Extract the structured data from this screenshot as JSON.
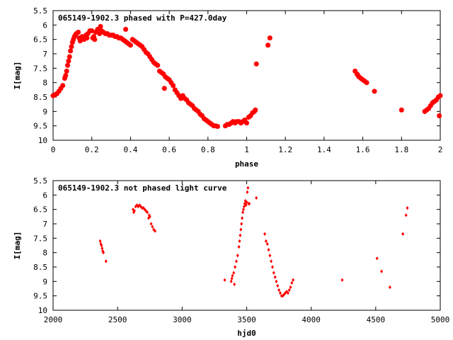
{
  "chart_data": [
    {
      "type": "scatter",
      "title": "065149-1902.3 phased with P=427.0day",
      "xlabel": "phase",
      "ylabel": "I[mag]",
      "xlim": [
        0,
        2
      ],
      "ylim": [
        10,
        5.5
      ],
      "y_inverted": true,
      "grid": false,
      "xticks": [
        "0",
        "0.2",
        "0.4",
        "0.6",
        "0.8",
        "1",
        "1.2",
        "1.4",
        "1.6",
        "1.8",
        "2"
      ],
      "yticks": [
        "5.5",
        "6",
        "6.5",
        "7",
        "7.5",
        "8",
        "8.5",
        "9",
        "9.5",
        "10"
      ],
      "marker_color": "#ff0000",
      "points": [
        [
          0.0,
          8.45
        ],
        [
          0.01,
          8.42
        ],
        [
          0.02,
          8.38
        ],
        [
          0.03,
          8.3
        ],
        [
          0.04,
          8.2
        ],
        [
          0.05,
          8.1
        ],
        [
          0.06,
          7.85
        ],
        [
          0.065,
          7.75
        ],
        [
          0.07,
          7.6
        ],
        [
          0.075,
          7.4
        ],
        [
          0.08,
          7.25
        ],
        [
          0.085,
          7.1
        ],
        [
          0.09,
          6.9
        ],
        [
          0.095,
          6.75
        ],
        [
          0.1,
          6.6
        ],
        [
          0.105,
          6.5
        ],
        [
          0.11,
          6.4
        ],
        [
          0.115,
          6.35
        ],
        [
          0.12,
          6.3
        ],
        [
          0.13,
          6.25
        ],
        [
          0.135,
          6.45
        ],
        [
          0.14,
          6.55
        ],
        [
          0.15,
          6.4
        ],
        [
          0.16,
          6.5
        ],
        [
          0.17,
          6.35
        ],
        [
          0.175,
          6.45
        ],
        [
          0.18,
          6.3
        ],
        [
          0.19,
          6.2
        ],
        [
          0.2,
          6.2
        ],
        [
          0.205,
          6.45
        ],
        [
          0.21,
          6.4
        ],
        [
          0.215,
          6.5
        ],
        [
          0.22,
          6.25
        ],
        [
          0.23,
          6.15
        ],
        [
          0.24,
          6.3
        ],
        [
          0.245,
          6.05
        ],
        [
          0.25,
          6.2
        ],
        [
          0.26,
          6.25
        ],
        [
          0.27,
          6.3
        ],
        [
          0.28,
          6.3
        ],
        [
          0.29,
          6.35
        ],
        [
          0.3,
          6.35
        ],
        [
          0.31,
          6.35
        ],
        [
          0.32,
          6.4
        ],
        [
          0.33,
          6.4
        ],
        [
          0.34,
          6.45
        ],
        [
          0.35,
          6.45
        ],
        [
          0.36,
          6.5
        ],
        [
          0.37,
          6.55
        ],
        [
          0.375,
          6.15
        ],
        [
          0.38,
          6.6
        ],
        [
          0.39,
          6.65
        ],
        [
          0.4,
          6.7
        ],
        [
          0.41,
          6.5
        ],
        [
          0.42,
          6.55
        ],
        [
          0.43,
          6.6
        ],
        [
          0.44,
          6.65
        ],
        [
          0.45,
          6.7
        ],
        [
          0.46,
          6.75
        ],
        [
          0.47,
          6.85
        ],
        [
          0.48,
          6.95
        ],
        [
          0.49,
          7.0
        ],
        [
          0.5,
          7.1
        ],
        [
          0.51,
          7.2
        ],
        [
          0.52,
          7.3
        ],
        [
          0.53,
          7.35
        ],
        [
          0.54,
          7.4
        ],
        [
          0.55,
          7.6
        ],
        [
          0.56,
          7.65
        ],
        [
          0.57,
          7.7
        ],
        [
          0.575,
          8.2
        ],
        [
          0.58,
          7.8
        ],
        [
          0.59,
          7.85
        ],
        [
          0.6,
          7.9
        ],
        [
          0.61,
          8.0
        ],
        [
          0.62,
          8.1
        ],
        [
          0.63,
          8.25
        ],
        [
          0.64,
          8.35
        ],
        [
          0.65,
          8.45
        ],
        [
          0.66,
          8.55
        ],
        [
          0.67,
          8.45
        ],
        [
          0.68,
          8.55
        ],
        [
          0.69,
          8.6
        ],
        [
          0.7,
          8.7
        ],
        [
          0.71,
          8.75
        ],
        [
          0.72,
          8.8
        ],
        [
          0.73,
          8.9
        ],
        [
          0.74,
          8.95
        ],
        [
          0.75,
          9.0
        ],
        [
          0.76,
          9.1
        ],
        [
          0.77,
          9.15
        ],
        [
          0.78,
          9.25
        ],
        [
          0.79,
          9.3
        ],
        [
          0.8,
          9.35
        ],
        [
          0.81,
          9.4
        ],
        [
          0.82,
          9.45
        ],
        [
          0.83,
          9.5
        ],
        [
          0.84,
          9.5
        ],
        [
          0.85,
          9.52
        ],
        [
          0.89,
          9.5
        ],
        [
          0.9,
          9.45
        ],
        [
          0.91,
          9.45
        ],
        [
          0.92,
          9.4
        ],
        [
          0.93,
          9.35
        ],
        [
          0.94,
          9.4
        ],
        [
          0.95,
          9.35
        ],
        [
          0.96,
          9.35
        ],
        [
          0.97,
          9.4
        ],
        [
          0.98,
          9.35
        ],
        [
          0.99,
          9.3
        ],
        [
          1.0,
          9.4
        ],
        [
          1.01,
          9.2
        ],
        [
          1.02,
          9.15
        ],
        [
          1.03,
          9.05
        ],
        [
          1.04,
          9.0
        ],
        [
          1.045,
          8.95
        ],
        [
          1.05,
          7.35
        ],
        [
          1.11,
          6.7
        ],
        [
          1.12,
          6.45
        ],
        [
          1.56,
          7.6
        ],
        [
          1.57,
          7.7
        ],
        [
          1.575,
          7.75
        ],
        [
          1.58,
          7.8
        ],
        [
          1.59,
          7.85
        ],
        [
          1.6,
          7.9
        ],
        [
          1.61,
          7.95
        ],
        [
          1.62,
          8.0
        ],
        [
          1.66,
          8.3
        ],
        [
          1.8,
          8.95
        ],
        [
          1.92,
          9.0
        ],
        [
          1.93,
          8.95
        ],
        [
          1.94,
          8.9
        ],
        [
          1.95,
          8.8
        ],
        [
          1.96,
          8.7
        ],
        [
          1.97,
          8.65
        ],
        [
          1.98,
          8.6
        ],
        [
          1.99,
          8.5
        ],
        [
          1.995,
          9.15
        ],
        [
          2.0,
          8.45
        ]
      ]
    },
    {
      "type": "scatter",
      "title": "065149-1902.3 not phased light curve",
      "xlabel": "hjd0",
      "ylabel": "I[mag]",
      "xlim": [
        2000,
        5000
      ],
      "ylim": [
        10,
        5.5
      ],
      "y_inverted": true,
      "grid": false,
      "xticks": [
        "2000",
        "2500",
        "3000",
        "3500",
        "4000",
        "4500",
        "5000"
      ],
      "yticks": [
        "5.5",
        "6",
        "6.5",
        "7",
        "7.5",
        "8",
        "8.5",
        "9",
        "9.5",
        "10"
      ],
      "marker_color": "#ff0000",
      "points": [
        [
          2365,
          7.6
        ],
        [
          2370,
          7.7
        ],
        [
          2375,
          7.75
        ],
        [
          2380,
          7.85
        ],
        [
          2385,
          7.95
        ],
        [
          2390,
          8.0
        ],
        [
          2410,
          8.3
        ],
        [
          2620,
          6.5
        ],
        [
          2625,
          6.6
        ],
        [
          2630,
          6.55
        ],
        [
          2640,
          6.4
        ],
        [
          2650,
          6.35
        ],
        [
          2660,
          6.4
        ],
        [
          2670,
          6.35
        ],
        [
          2680,
          6.4
        ],
        [
          2690,
          6.45
        ],
        [
          2700,
          6.45
        ],
        [
          2710,
          6.5
        ],
        [
          2720,
          6.55
        ],
        [
          2730,
          6.6
        ],
        [
          2740,
          6.8
        ],
        [
          2745,
          6.7
        ],
        [
          2750,
          6.75
        ],
        [
          2760,
          7.0
        ],
        [
          2770,
          7.1
        ],
        [
          2780,
          7.2
        ],
        [
          2790,
          7.25
        ],
        [
          3330,
          8.95
        ],
        [
          3380,
          9.0
        ],
        [
          3385,
          8.9
        ],
        [
          3390,
          8.8
        ],
        [
          3400,
          8.7
        ],
        [
          3405,
          9.1
        ],
        [
          3410,
          8.5
        ],
        [
          3420,
          8.3
        ],
        [
          3430,
          8.1
        ],
        [
          3440,
          7.8
        ],
        [
          3445,
          7.6
        ],
        [
          3450,
          7.4
        ],
        [
          3455,
          7.2
        ],
        [
          3460,
          7.0
        ],
        [
          3465,
          6.8
        ],
        [
          3470,
          6.6
        ],
        [
          3475,
          6.5
        ],
        [
          3480,
          6.4
        ],
        [
          3485,
          6.3
        ],
        [
          3490,
          6.2
        ],
        [
          3495,
          6.35
        ],
        [
          3500,
          6.25
        ],
        [
          3505,
          5.9
        ],
        [
          3510,
          5.75
        ],
        [
          3515,
          6.3
        ],
        [
          3520,
          6.3
        ],
        [
          3575,
          6.1
        ],
        [
          3640,
          7.35
        ],
        [
          3650,
          7.6
        ],
        [
          3660,
          7.7
        ],
        [
          3670,
          7.9
        ],
        [
          3680,
          8.1
        ],
        [
          3690,
          8.3
        ],
        [
          3700,
          8.5
        ],
        [
          3710,
          8.7
        ],
        [
          3720,
          8.85
        ],
        [
          3730,
          9.0
        ],
        [
          3740,
          9.15
        ],
        [
          3750,
          9.3
        ],
        [
          3760,
          9.4
        ],
        [
          3770,
          9.5
        ],
        [
          3780,
          9.5
        ],
        [
          3790,
          9.45
        ],
        [
          3800,
          9.4
        ],
        [
          3810,
          9.35
        ],
        [
          3820,
          9.4
        ],
        [
          3830,
          9.3
        ],
        [
          3840,
          9.2
        ],
        [
          3850,
          9.05
        ],
        [
          3860,
          8.95
        ],
        [
          4240,
          8.95
        ],
        [
          4510,
          8.2
        ],
        [
          4545,
          8.65
        ],
        [
          4610,
          9.2
        ],
        [
          4710,
          7.35
        ],
        [
          4735,
          6.7
        ],
        [
          4745,
          6.45
        ]
      ]
    }
  ]
}
